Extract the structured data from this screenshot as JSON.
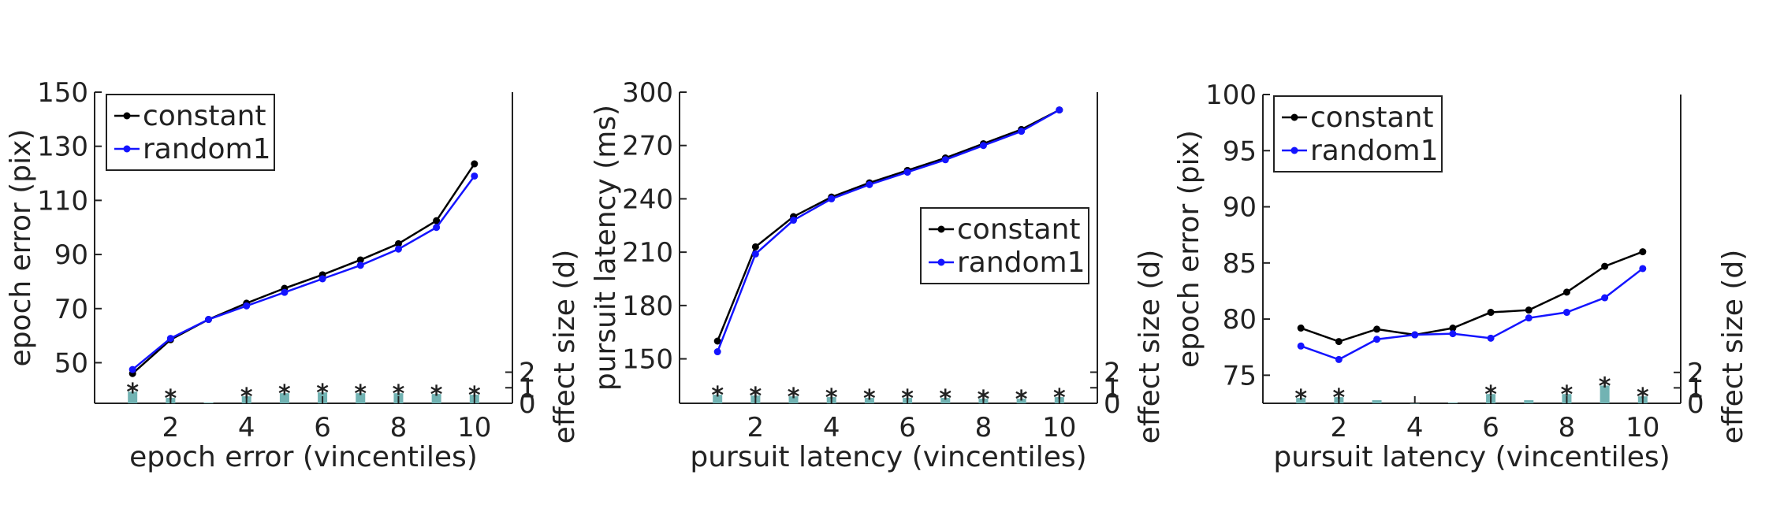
{
  "colors": {
    "constant": "#000000",
    "random1": "#1414ff",
    "bars": "#72b3b3",
    "axis": "#222222",
    "legend_border": "#222222"
  },
  "chart_data": [
    {
      "type": "line",
      "xlabel": "epoch error (vincentiles)",
      "ylabel": "epoch error (pix)",
      "ylabel_right": "effect size (d)",
      "xlim": [
        0,
        11
      ],
      "xticks": [
        2,
        4,
        6,
        8,
        10
      ],
      "ylim_main": [
        35,
        150
      ],
      "yticks": [
        50,
        70,
        90,
        110,
        130,
        150
      ],
      "ylim_effect": [
        0,
        20
      ],
      "yticks_right": [
        0,
        1,
        2
      ],
      "legend": "top-left",
      "x": [
        1,
        2,
        3,
        4,
        5,
        6,
        7,
        8,
        9,
        10
      ],
      "series": [
        {
          "name": "constant",
          "color": "#000000",
          "values": [
            46,
            58.5,
            66,
            72,
            77.5,
            82.5,
            88,
            94,
            102.5,
            123.5
          ]
        },
        {
          "name": "random1",
          "color": "#1414ff",
          "values": [
            47.5,
            59,
            66,
            71,
            76,
            81,
            86,
            92,
            100,
            119
          ]
        }
      ],
      "effect_sizes": [
        0.75,
        0.35,
        0.05,
        0.45,
        0.65,
        0.7,
        0.65,
        0.65,
        0.6,
        0.55
      ],
      "significant": [
        true,
        true,
        false,
        true,
        true,
        true,
        true,
        true,
        true,
        true
      ],
      "star_label": "*"
    },
    {
      "type": "line",
      "xlabel": "pursuit latency (vincentiles)",
      "ylabel": "pursuit latency (ms)",
      "ylabel_right": "effect size (d)",
      "xlim": [
        0,
        11
      ],
      "xticks": [
        2,
        4,
        6,
        8,
        10
      ],
      "ylim_main": [
        125,
        300
      ],
      "yticks": [
        150,
        180,
        210,
        240,
        270,
        300
      ],
      "ylim_effect": [
        0,
        20
      ],
      "yticks_right": [
        0,
        1,
        2
      ],
      "legend": "center-right",
      "x": [
        1,
        2,
        3,
        4,
        5,
        6,
        7,
        8,
        9,
        10
      ],
      "series": [
        {
          "name": "constant",
          "color": "#000000",
          "values": [
            160,
            213,
            230,
            241,
            249,
            256,
            263,
            271,
            279,
            290
          ]
        },
        {
          "name": "random1",
          "color": "#1414ff",
          "values": [
            154,
            209,
            228,
            240,
            248,
            255,
            262,
            270,
            278,
            290
          ]
        }
      ],
      "effect_sizes": [
        0.55,
        0.5,
        0.45,
        0.4,
        0.35,
        0.35,
        0.35,
        0.3,
        0.3,
        0.4
      ],
      "significant": [
        true,
        true,
        true,
        true,
        true,
        true,
        true,
        true,
        true,
        true
      ],
      "star_label": "*"
    },
    {
      "type": "line",
      "xlabel": "pursuit latency (vincentiles)",
      "ylabel": "epoch error (pix)",
      "ylabel_right": "effect size (d)",
      "xlim": [
        0,
        11
      ],
      "xticks": [
        2,
        4,
        6,
        8,
        10
      ],
      "ylim_main": [
        72.5,
        100
      ],
      "yticks": [
        75,
        80,
        85,
        90,
        95,
        100
      ],
      "ylim_effect": [
        0,
        20
      ],
      "yticks_right": [
        0,
        1,
        2
      ],
      "legend": "top-left",
      "x": [
        1,
        2,
        3,
        4,
        5,
        6,
        7,
        8,
        9,
        10
      ],
      "series": [
        {
          "name": "constant",
          "color": "#000000",
          "values": [
            79.2,
            78,
            79.1,
            78.6,
            79.2,
            80.6,
            80.8,
            82.4,
            84.7,
            86
          ]
        },
        {
          "name": "random1",
          "color": "#1414ff",
          "values": [
            77.6,
            76.4,
            78.2,
            78.6,
            78.7,
            78.3,
            80.1,
            80.6,
            81.9,
            84.5
          ]
        }
      ],
      "effect_sizes": [
        0.35,
        0.4,
        0.2,
        0.0,
        0.05,
        0.6,
        0.2,
        0.6,
        1.15,
        0.45
      ],
      "significant": [
        true,
        true,
        false,
        false,
        false,
        true,
        false,
        true,
        true,
        true
      ],
      "star_label": "*"
    }
  ]
}
